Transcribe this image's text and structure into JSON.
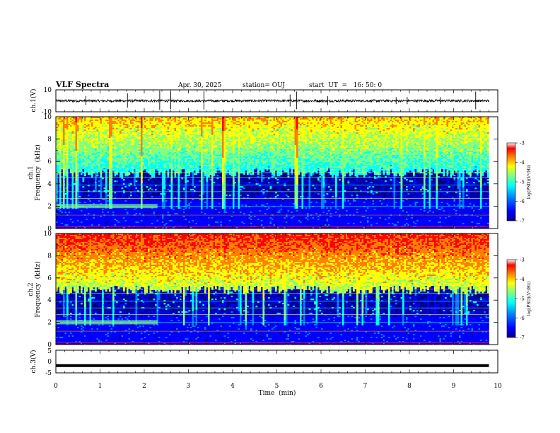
{
  "header": {
    "title": "VLF Spectra",
    "date": "Apr. 30, 2025",
    "station": "station= OUJ",
    "start": "start  UT  =   16: 50: 0"
  },
  "chart_data": [
    {
      "type": "line",
      "panel": "ch1-waveform",
      "ylabel": "ch.1(V)",
      "ylim": [
        -10,
        10
      ],
      "yticks": [
        "10",
        "-10"
      ],
      "xlim": [
        0,
        10
      ]
    },
    {
      "type": "heatmap",
      "panel": "ch1-spectrogram",
      "ylabel": "ch.1 Frequency (kHz)",
      "ylabel_lines": [
        "ch.1",
        "Frequency  (kHz)"
      ],
      "ylim": [
        0,
        10
      ],
      "yticks": [
        "0",
        "2",
        "4",
        "6",
        "8",
        "10"
      ],
      "xlim": [
        0,
        10
      ],
      "colorbar": {
        "label": "log(PSD)(V²/Hz)",
        "range": [
          -7,
          -3
        ],
        "ticks": [
          "-3",
          "-4",
          "-5",
          "-6",
          "-7"
        ]
      }
    },
    {
      "type": "heatmap",
      "panel": "ch2-spectrogram",
      "ylabel": "ch.2 Frequency (kHz)",
      "ylabel_lines": [
        "ch.2",
        "Frequency  (kHz)"
      ],
      "ylim": [
        0,
        10
      ],
      "yticks": [
        "0",
        "2",
        "4",
        "6",
        "8",
        "10"
      ],
      "xlim": [
        0,
        10
      ],
      "colorbar": {
        "label": "log(PSD)(V²/Hz)",
        "range": [
          -7,
          -3
        ],
        "ticks": [
          "-3",
          "-4",
          "-5",
          "-6",
          "-7"
        ]
      }
    },
    {
      "type": "line",
      "panel": "ch3-waveform",
      "ylabel": "ch.3(V)",
      "ylim": [
        -5,
        5
      ],
      "yticks": [
        "5",
        "0",
        "-5"
      ],
      "x": [
        0,
        9.8
      ],
      "y": [
        -1.8,
        -1.8
      ],
      "xlim": [
        0,
        10
      ],
      "xlabel": "Time  (min)",
      "xticks": [
        "0",
        "1",
        "2",
        "3",
        "4",
        "5",
        "6",
        "7",
        "8",
        "9",
        "10"
      ]
    }
  ],
  "colors": {
    "spectral_scale": [
      "#00008f",
      "#0000ff",
      "#0080ff",
      "#00ffff",
      "#80ff80",
      "#ffff00",
      "#ff8000",
      "#ff0000",
      "#ffffff"
    ]
  }
}
